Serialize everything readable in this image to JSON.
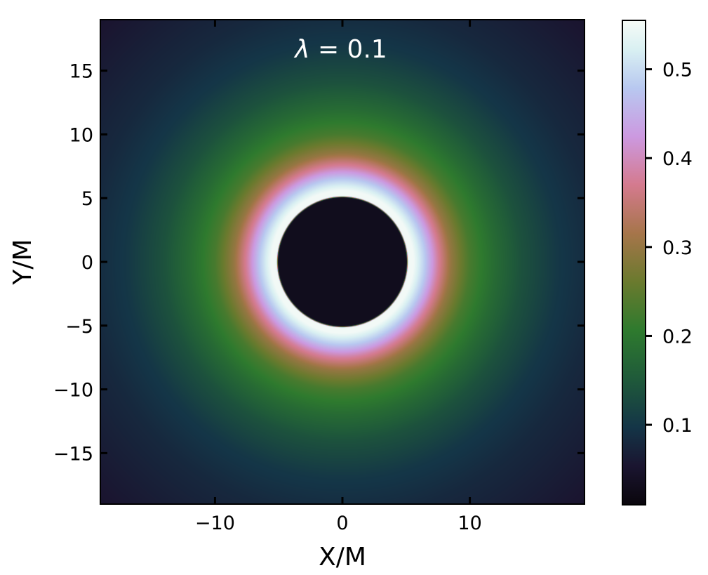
{
  "chart_data": {
    "type": "heatmap",
    "title": "λ = 0.1",
    "title_symbol": "λ",
    "title_rest": " = 0.1",
    "xlabel": "X/M",
    "ylabel": "Y/M",
    "xlim": [
      -19,
      19
    ],
    "ylim": [
      -19,
      19
    ],
    "xticks": [
      -10,
      0,
      10
    ],
    "yticks": [
      -15,
      -10,
      -5,
      0,
      5,
      10,
      15
    ],
    "xtick_labels": [
      "−10",
      "0",
      "10"
    ],
    "ytick_labels": [
      "−15",
      "−10",
      "−5",
      "0",
      "5",
      "10",
      "15"
    ],
    "shadow_radius": 5.1,
    "peak_radius": 5.6,
    "radial_profile": {
      "r": [
        5.1,
        5.6,
        6.5,
        7.5,
        8.5,
        10,
        12,
        14,
        17,
        20,
        27
      ],
      "intensity": [
        0.55,
        0.55,
        0.48,
        0.38,
        0.3,
        0.23,
        0.18,
        0.14,
        0.1,
        0.08,
        0.05
      ]
    },
    "shadow_intensity": 0.03,
    "colorbar": {
      "colormap": "cubehelix",
      "min": 0.01,
      "max": 0.555,
      "ticks": [
        0.1,
        0.2,
        0.3,
        0.4,
        0.5
      ],
      "tick_labels": [
        "0.1",
        "0.2",
        "0.3",
        "0.4",
        "0.5"
      ]
    },
    "grid": false,
    "colors": {
      "colormap_stops": [
        [
          0.0,
          "#0a060c"
        ],
        [
          0.08,
          "#1a1530"
        ],
        [
          0.16,
          "#143547"
        ],
        [
          0.26,
          "#1f5a3a"
        ],
        [
          0.36,
          "#2e7a2e"
        ],
        [
          0.46,
          "#6a7a2e"
        ],
        [
          0.56,
          "#a6754a"
        ],
        [
          0.66,
          "#d47a8e"
        ],
        [
          0.76,
          "#cc99e0"
        ],
        [
          0.86,
          "#b8c8f0"
        ],
        [
          0.94,
          "#d9f0f2"
        ],
        [
          1.0,
          "#f6fbf7"
        ]
      ]
    }
  }
}
